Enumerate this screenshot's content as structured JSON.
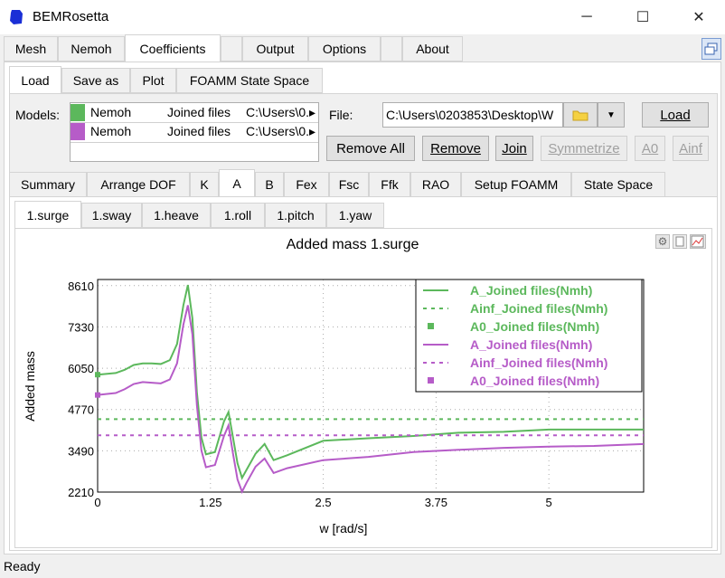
{
  "window": {
    "title": "BEMRosetta",
    "minimize": "─",
    "maximize": "☐",
    "close": "✕"
  },
  "main_tabs": [
    "Mesh",
    "Nemoh",
    "Coefficients",
    "Output",
    "Options",
    "About"
  ],
  "sub_tabs": [
    "Load",
    "Save as",
    "Plot",
    "FOAMM State Space"
  ],
  "models": {
    "label": "Models:",
    "rows": [
      {
        "name": "Nemoh",
        "type": "Joined files",
        "path": "C:\\Users\\0.▸",
        "color": "#5cb85c"
      },
      {
        "name": "Nemoh",
        "type": "Joined files",
        "path": "C:\\Users\\0.▸",
        "color": "#b65cc8"
      }
    ]
  },
  "file": {
    "label": "File:",
    "value": "C:\\Users\\0203853\\Desktop\\W",
    "load_button": "Load"
  },
  "actions": {
    "remove_all": "Remove All",
    "remove": "Remove",
    "join": "Join",
    "symmetrize": "Symmetrize",
    "a0": "A0",
    "ainf": "Ainf"
  },
  "coef_tabs": [
    "Summary",
    "Arrange DOF",
    "K",
    "A",
    "B",
    "Fex",
    "Fsc",
    "Ffk",
    "RAO",
    "Setup FOAMM",
    "State Space"
  ],
  "dof_tabs": [
    "1.surge",
    "1.sway",
    "1.heave",
    "1.roll",
    "1.pitch",
    "1.yaw"
  ],
  "status": "Ready",
  "chart_data": {
    "type": "line",
    "title": "Added mass 1.surge",
    "xlabel": "w [rad/s]",
    "ylabel": "Added mass",
    "xlim": [
      0,
      6.05
    ],
    "ylim": [
      2210,
      8800
    ],
    "xticks": [
      0,
      1.25,
      2.5,
      3.75,
      5
    ],
    "xtick_labels": [
      "0",
      "1.25",
      "2.5",
      "3.75",
      "5"
    ],
    "yticks": [
      2210,
      3490,
      4770,
      6050,
      7330,
      8610
    ],
    "yticks_labels": [
      "2210",
      "3490",
      "4770",
      "6050",
      "7330",
      "8610"
    ],
    "grid": true,
    "legend_position": "top-right",
    "series": [
      {
        "name": "A_Joined files(Nmh)",
        "color": "#5cb85c",
        "style": "line",
        "x": [
          0,
          0.2,
          0.3,
          0.4,
          0.5,
          0.6,
          0.7,
          0.8,
          0.88,
          0.95,
          1.0,
          1.05,
          1.1,
          1.15,
          1.2,
          1.3,
          1.4,
          1.45,
          1.5,
          1.55,
          1.6,
          1.65,
          1.75,
          1.85,
          1.95,
          2.1,
          2.5,
          3.0,
          3.5,
          4.0,
          4.5,
          5.0,
          5.5,
          6.05
        ],
        "y": [
          5850,
          5900,
          6000,
          6150,
          6200,
          6200,
          6180,
          6300,
          6800,
          8000,
          8630,
          7600,
          5300,
          3900,
          3380,
          3450,
          4400,
          4690,
          3900,
          3100,
          2650,
          2900,
          3400,
          3700,
          3200,
          3350,
          3800,
          3880,
          3950,
          4050,
          4080,
          4150,
          4150,
          4150
        ]
      },
      {
        "name": "Ainf_Joined files(Nmh)",
        "color": "#5cb85c",
        "style": "dashed",
        "x": [
          0,
          6.05
        ],
        "y": [
          4470,
          4470
        ]
      },
      {
        "name": "A0_Joined files(Nmh)",
        "color": "#5cb85c",
        "style": "marker",
        "x": [
          0
        ],
        "y": [
          5850
        ]
      },
      {
        "name": "A_Joined files(Nmh)",
        "color": "#b65cc8",
        "style": "line",
        "x": [
          0,
          0.2,
          0.3,
          0.4,
          0.5,
          0.6,
          0.7,
          0.8,
          0.88,
          0.95,
          1.0,
          1.05,
          1.1,
          1.15,
          1.2,
          1.3,
          1.4,
          1.45,
          1.5,
          1.55,
          1.6,
          1.65,
          1.75,
          1.85,
          1.95,
          2.1,
          2.5,
          3.0,
          3.5,
          4.0,
          4.5,
          5.0,
          5.5,
          6.05
        ],
        "y": [
          5220,
          5280,
          5400,
          5560,
          5620,
          5600,
          5580,
          5700,
          6200,
          7400,
          8000,
          7100,
          4900,
          3500,
          2980,
          3050,
          3950,
          4280,
          3400,
          2600,
          2220,
          2500,
          3000,
          3250,
          2800,
          2950,
          3200,
          3300,
          3450,
          3520,
          3580,
          3620,
          3640,
          3700
        ]
      },
      {
        "name": "Ainf_Joined files(Nmh)",
        "color": "#b65cc8",
        "style": "dashed",
        "x": [
          0,
          6.05
        ],
        "y": [
          3970,
          3970
        ]
      },
      {
        "name": "A0_Joined files(Nmh)",
        "color": "#b65cc8",
        "style": "marker",
        "x": [
          0
        ],
        "y": [
          5220
        ]
      }
    ]
  }
}
